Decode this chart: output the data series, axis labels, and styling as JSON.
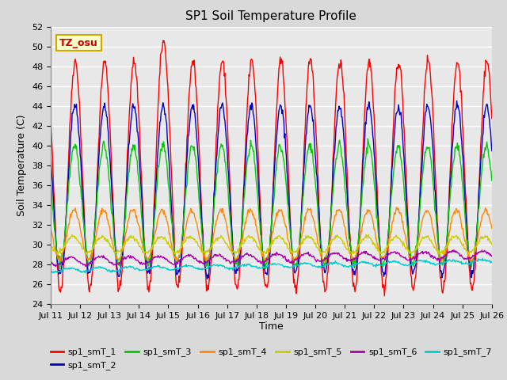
{
  "title": "SP1 Soil Temperature Profile",
  "xlabel": "Time",
  "ylabel": "Soil Temperature (C)",
  "ylim": [
    24,
    52
  ],
  "xtick_labels": [
    "Jul 11",
    "Jul 12",
    "Jul 13",
    "Jul 14",
    "Jul 15",
    "Jul 16",
    "Jul 17",
    "Jul 18",
    "Jul 19",
    "Jul 20",
    "Jul 21",
    "Jul 22",
    "Jul 23",
    "Jul 24",
    "Jul 25",
    "Jul 26"
  ],
  "annotation": "TZ_osu",
  "annotation_color": "#cc0000",
  "annotation_bg": "#ffffcc",
  "annotation_border": "#ccaa00",
  "series_colors": [
    "#ff0000",
    "#0000cc",
    "#00cc00",
    "#ff8800",
    "#cccc00",
    "#aa00aa",
    "#00cccc"
  ],
  "series_labels": [
    "sp1_smT_1",
    "sp1_smT_2",
    "sp1_smT_3",
    "sp1_smT_4",
    "sp1_smT_5",
    "sp1_smT_6",
    "sp1_smT_7"
  ],
  "bg_color": "#e8e8e8",
  "grid_color": "#ffffff",
  "title_fontsize": 11,
  "label_fontsize": 9,
  "tick_fontsize": 8,
  "legend_fontsize": 8
}
